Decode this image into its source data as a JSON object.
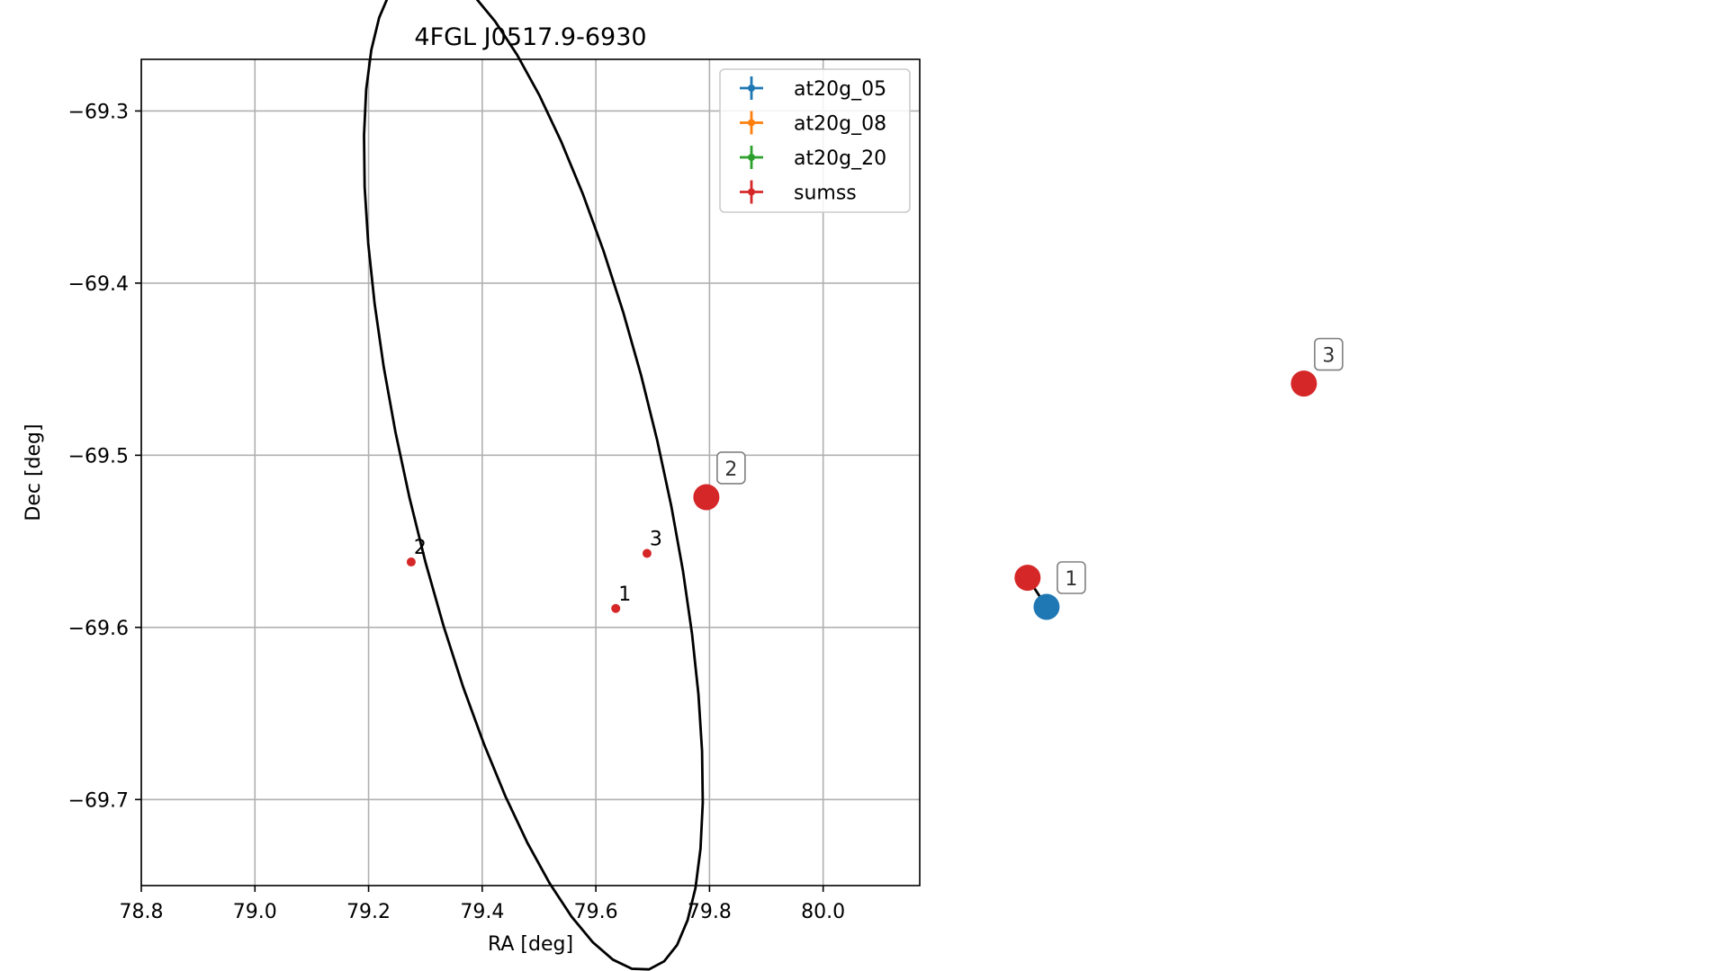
{
  "chart_data": [
    {
      "type": "scatter",
      "title": "4FGL J0517.9-6930",
      "xlabel": "RA [deg]",
      "ylabel": "Dec [deg]",
      "xlim": [
        78.8,
        80.17
      ],
      "ylim": [
        -69.75,
        -69.27
      ],
      "x_ticks": [
        78.8,
        79.0,
        79.2,
        79.4,
        79.6,
        79.8,
        80.0
      ],
      "x_tick_labels": [
        "78.8",
        "79.0",
        "79.2",
        "79.4",
        "79.6",
        "79.8",
        "80.0"
      ],
      "y_ticks": [
        -69.3,
        -69.4,
        -69.5,
        -69.6,
        -69.7
      ],
      "y_tick_labels": [
        "−69.3",
        "−69.4",
        "−69.5",
        "−69.6",
        "−69.7"
      ],
      "grid": true,
      "legend_position": "top-right",
      "legend": [
        {
          "name": "at20g_05",
          "color": "#1f77b4"
        },
        {
          "name": "at20g_08",
          "color": "#ff7f0e"
        },
        {
          "name": "at20g_20",
          "color": "#2ca02c"
        },
        {
          "name": "sumss",
          "color": "#d62728"
        }
      ],
      "series": [
        {
          "name": "sumss",
          "color": "#d62728",
          "points": [
            {
              "label": "1",
              "x": 79.635,
              "y": -69.589
            },
            {
              "label": "2",
              "x": 79.275,
              "y": -69.562
            },
            {
              "label": "3",
              "x": 79.69,
              "y": -69.557
            }
          ]
        }
      ],
      "ellipse": {
        "center_x": 79.49,
        "center_y": -69.508,
        "rx": 0.373,
        "ry": 0.157,
        "tilt_deg": -13,
        "color": "#000000"
      }
    },
    {
      "type": "scatter",
      "title": "",
      "axes": false,
      "points": [
        {
          "label": "1",
          "color": "#1f77b4",
          "fx": 0.606,
          "fy": 0.625
        },
        {
          "label": "1",
          "color": "#d62728",
          "fx": 0.595,
          "fy": 0.595,
          "show_label": false
        },
        {
          "label": "2",
          "color": "#d62728",
          "fx": 0.409,
          "fy": 0.512
        },
        {
          "label": "3",
          "color": "#d62728",
          "fx": 0.755,
          "fy": 0.395
        }
      ],
      "links": [
        [
          0,
          1
        ]
      ]
    }
  ]
}
